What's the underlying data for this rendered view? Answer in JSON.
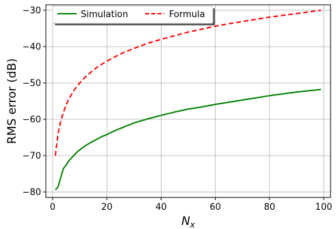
{
  "chart_data": {
    "type": "line",
    "xlabel": "N",
    "xlabel_sub": "x",
    "ylabel": "RMS error (dB)",
    "xlim": [
      -2.5,
      102.5
    ],
    "ylim": [
      -81.5,
      -28.5
    ],
    "xticks": [
      0,
      20,
      40,
      60,
      80,
      100
    ],
    "yticks": [
      -80,
      -70,
      -60,
      -50,
      -40,
      -30
    ],
    "xtick_labels": [
      "0",
      "20",
      "40",
      "60",
      "80",
      "100"
    ],
    "ytick_labels": [
      "−80",
      "−70",
      "−60",
      "−50",
      "−40",
      "−30"
    ],
    "grid": true,
    "legend_position": "top-left",
    "series": [
      {
        "name": "Simulation",
        "color": "#008000",
        "style": "solid",
        "x": [
          1,
          2,
          3,
          4,
          5,
          6,
          7,
          8,
          9,
          10,
          12,
          14,
          16,
          18,
          20,
          23,
          26,
          30,
          35,
          40,
          45,
          50,
          55,
          60,
          65,
          70,
          75,
          80,
          85,
          90,
          95,
          99
        ],
        "y": [
          -79.4,
          -78.6,
          -76.0,
          -73.5,
          -72.6,
          -71.4,
          -70.6,
          -69.8,
          -69.0,
          -68.4,
          -67.3,
          -66.4,
          -65.6,
          -64.8,
          -64.2,
          -63.1,
          -62.2,
          -61.0,
          -59.9,
          -58.9,
          -58.0,
          -57.2,
          -56.6,
          -55.9,
          -55.3,
          -54.7,
          -54.1,
          -53.5,
          -53.0,
          -52.5,
          -52.1,
          -51.8
        ]
      },
      {
        "name": "Formula",
        "color": "#ff0000",
        "style": "dashed",
        "x": [
          1,
          2,
          3,
          4,
          5,
          6,
          7,
          8,
          9,
          10,
          12,
          14,
          16,
          18,
          20,
          23,
          26,
          30,
          35,
          40,
          45,
          50,
          55,
          60,
          65,
          70,
          75,
          80,
          85,
          90,
          95,
          99
        ],
        "y": [
          -70.0,
          -64.0,
          -60.5,
          -58.0,
          -56.0,
          -54.4,
          -53.1,
          -51.9,
          -50.9,
          -50.0,
          -48.4,
          -47.1,
          -45.9,
          -44.9,
          -44.0,
          -42.8,
          -41.7,
          -40.5,
          -39.1,
          -38.0,
          -37.0,
          -36.0,
          -35.2,
          -34.4,
          -33.7,
          -33.1,
          -32.5,
          -31.9,
          -31.4,
          -30.9,
          -30.4,
          -30.0
        ]
      }
    ]
  }
}
